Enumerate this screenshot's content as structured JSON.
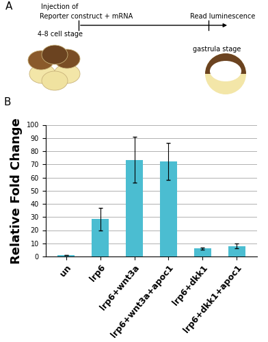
{
  "diagram": {
    "label": "A",
    "texts": [
      "Injection of",
      "Reporter construct + mRNA",
      "Read luminescence",
      "4-8 cell stage",
      "gastrula stage"
    ]
  },
  "chart_data": {
    "type": "bar",
    "annotations": [
      "B"
    ],
    "y_label": "Relative Fold Change",
    "categories": [
      "un",
      "lrp6",
      "lrp6+wnt3a",
      "lrp6+wnt3a+apoc1",
      "lrp6+dkk1",
      "lrp6+dkk1+apoc1"
    ],
    "values": [
      1,
      28.5,
      73.5,
      72,
      6,
      8
    ],
    "errors": [
      0.2,
      8.5,
      17.5,
      14,
      0.8,
      1.8
    ],
    "color": "#4bbdd1",
    "ylim": [
      0,
      100
    ],
    "yticks": [
      0,
      10,
      20,
      30,
      40,
      50,
      60,
      70,
      80,
      90,
      100
    ],
    "grid": true
  }
}
